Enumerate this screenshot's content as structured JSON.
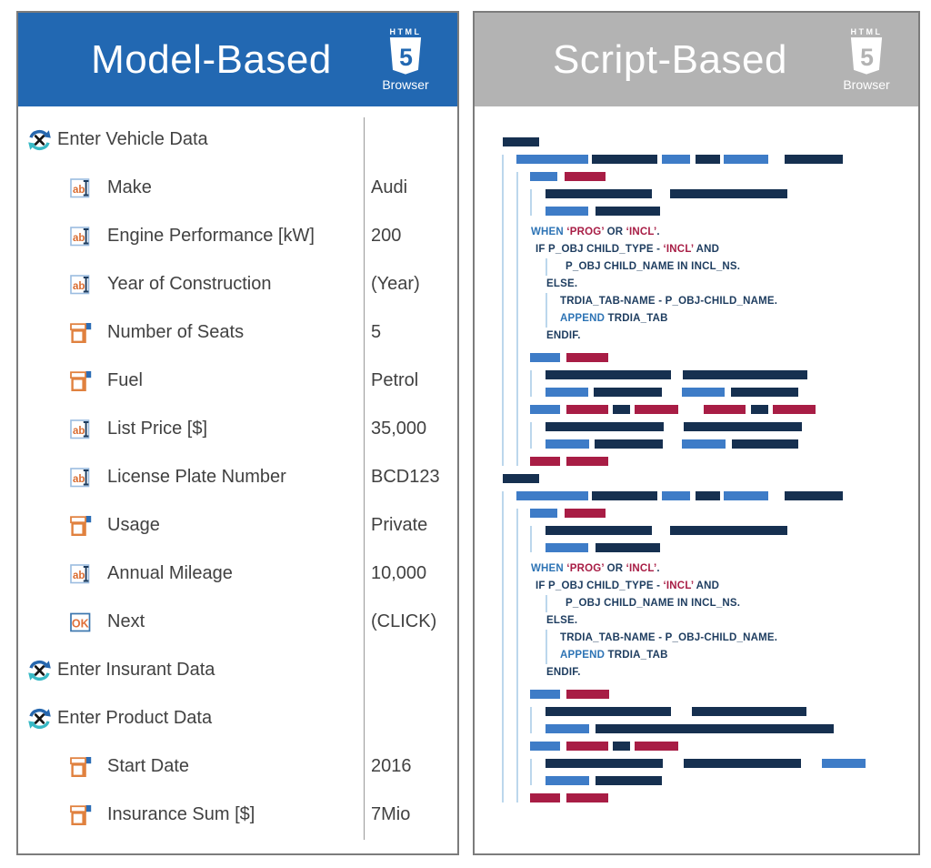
{
  "colors": {
    "header_blue": "#2268b2",
    "header_gray": "#b3b3b3",
    "bar_blue": "#3e7cc7",
    "bar_navy": "#163050",
    "bar_crimson": "#a81d45",
    "indent_line": "#bcd7ec",
    "code_text_navy": "#1d3c5f",
    "code_keyword_blue": "#2e74b5",
    "code_string_crimson": "#a81d45",
    "icon_orange": "#d96b2f",
    "sync_teal": "#38b9c6"
  },
  "model_panel": {
    "title": "Model-Based",
    "logo": {
      "top": "HTML",
      "five": "5",
      "caption": "Browser"
    },
    "icon_labels": {
      "text_input": "ab",
      "ok": "OK"
    },
    "rows": [
      {
        "icon": "sync",
        "label": "Enter Vehicle Data",
        "value": "",
        "level": 0
      },
      {
        "icon": "text",
        "label": "Make",
        "value": "Audi",
        "level": 1
      },
      {
        "icon": "text",
        "label": "Engine Performance [kW]",
        "value": "200",
        "level": 1
      },
      {
        "icon": "text",
        "label": "Year of Construction",
        "value": "(Year)",
        "level": 1
      },
      {
        "icon": "combo",
        "label": "Number of Seats",
        "value": "5",
        "level": 1
      },
      {
        "icon": "combo",
        "label": "Fuel",
        "value": "Petrol",
        "level": 1
      },
      {
        "icon": "text",
        "label": "List Price [$]",
        "value": "35,000",
        "level": 1
      },
      {
        "icon": "text",
        "label": "License Plate Number",
        "value": "BCD123",
        "level": 1
      },
      {
        "icon": "combo",
        "label": "Usage",
        "value": "Private",
        "level": 1
      },
      {
        "icon": "text",
        "label": "Annual Mileage",
        "value": "10,000",
        "level": 1
      },
      {
        "icon": "ok",
        "label": "Next",
        "value": "(CLICK)",
        "level": 1
      },
      {
        "icon": "sync",
        "label": "Enter Insurant Data",
        "value": "",
        "level": 0
      },
      {
        "icon": "sync",
        "label": "Enter Product Data",
        "value": "",
        "level": 0
      },
      {
        "icon": "combo",
        "label": "Start Date",
        "value": "2016",
        "level": 1
      },
      {
        "icon": "combo",
        "label": "Insurance Sum [$]",
        "value": "7Mio",
        "level": 1
      }
    ]
  },
  "script_panel": {
    "title": "Script-Based",
    "logo": {
      "top": "HTML",
      "five": "5",
      "caption": "Browser"
    },
    "code_lines": [
      {
        "ind": 0,
        "parts": [
          [
            "WHEN ",
            "kw"
          ],
          [
            "‘PROG’ ",
            "str"
          ],
          [
            " OR ",
            "plain"
          ],
          [
            "‘INCL’",
            "str"
          ],
          [
            ".",
            "plain"
          ]
        ]
      },
      {
        "ind": 1,
        "parts": [
          [
            "IF P_OBJ CHILD_TYPE - ",
            "plain"
          ],
          [
            "‘INCL’",
            "str"
          ],
          [
            " AND",
            "plain"
          ]
        ]
      },
      {
        "sub": true,
        "pad": 6,
        "parts": [
          [
            "P_OBJ CHILD_NAME IN INCL_NS.",
            "plain"
          ]
        ]
      },
      {
        "ind": 2,
        "parts": [
          [
            "ELSE.",
            "plain"
          ]
        ]
      },
      {
        "sub": true,
        "parts": [
          [
            "TRDIA_TAB-NAME - P_OBJ-CHILD_NAME.",
            "plain"
          ]
        ]
      },
      {
        "sub": true,
        "parts": [
          [
            "APPEND ",
            "kw"
          ],
          [
            "TRDIA_TAB",
            "plain"
          ]
        ]
      },
      {
        "ind": 2,
        "parts": [
          [
            "ENDIF.",
            "plain"
          ]
        ]
      }
    ],
    "blocks": [
      {
        "row1": [
          [
            "b",
            79,
            0
          ],
          [
            "d",
            72,
            4
          ],
          [
            "b",
            31,
            5
          ],
          [
            "d",
            27,
            6
          ],
          [
            "b",
            49,
            4
          ],
          [
            "d",
            64,
            18
          ]
        ],
        "top_rows": [
          {
            "lvl": 2,
            "bars": [
              [
                "b",
                30,
                0
              ],
              [
                "r",
                45,
                8
              ]
            ]
          },
          {
            "lvl": 3,
            "bars": [
              [
                "d",
                117,
                0
              ],
              [
                "d",
                129,
                20
              ]
            ]
          },
          {
            "lvl": 3,
            "bars": [
              [
                "b",
                47,
                0
              ],
              [
                "d",
                71,
                8
              ]
            ]
          }
        ],
        "bottom_rows": [
          {
            "lvl": 2,
            "bars": [
              [
                "b",
                33,
                0
              ],
              [
                "r",
                46,
                7
              ]
            ]
          },
          {
            "lvl": 3,
            "bars": [
              [
                "d",
                138,
                0
              ],
              [
                "d",
                137,
                13
              ]
            ]
          },
          {
            "lvl": 3,
            "bars": [
              [
                "b",
                47,
                0
              ],
              [
                "d",
                75,
                6
              ],
              [
                "b",
                47,
                22
              ],
              [
                "d",
                74,
                7
              ]
            ]
          },
          {
            "lvl": 2,
            "bars": [
              [
                "b",
                33,
                0
              ],
              [
                "r",
                46,
                7
              ],
              [
                "d",
                19,
                5
              ],
              [
                "r",
                48,
                5
              ],
              [
                "r",
                46,
                28
              ],
              [
                "d",
                19,
                6
              ],
              [
                "r",
                47,
                5
              ]
            ]
          },
          {
            "lvl": 3,
            "bars": [
              [
                "d",
                130,
                0
              ],
              [
                "d",
                130,
                22
              ]
            ]
          },
          {
            "lvl": 3,
            "bars": [
              [
                "b",
                48,
                0
              ],
              [
                "d",
                75,
                6
              ],
              [
                "b",
                48,
                21
              ],
              [
                "d",
                73,
                7
              ]
            ]
          },
          {
            "lvl": 2,
            "bars": [
              [
                "r",
                33,
                0
              ],
              [
                "r",
                46,
                7
              ]
            ]
          }
        ]
      },
      {
        "row1": [
          [
            "b",
            79,
            0
          ],
          [
            "d",
            72,
            4
          ],
          [
            "b",
            31,
            5
          ],
          [
            "d",
            27,
            6
          ],
          [
            "b",
            49,
            4
          ],
          [
            "d",
            64,
            18
          ]
        ],
        "top_rows": [
          {
            "lvl": 2,
            "bars": [
              [
                "b",
                30,
                0
              ],
              [
                "r",
                45,
                8
              ]
            ]
          },
          {
            "lvl": 3,
            "bars": [
              [
                "d",
                117,
                0
              ],
              [
                "d",
                129,
                20
              ]
            ]
          },
          {
            "lvl": 3,
            "bars": [
              [
                "b",
                47,
                0
              ],
              [
                "d",
                71,
                8
              ]
            ]
          }
        ],
        "bottom_rows": [
          {
            "lvl": 2,
            "bars": [
              [
                "b",
                33,
                0
              ],
              [
                "r",
                47,
                7
              ]
            ]
          },
          {
            "lvl": 3,
            "bars": [
              [
                "d",
                138,
                0
              ],
              [
                "d",
                126,
                23
              ]
            ]
          },
          {
            "lvl": 3,
            "bars": [
              [
                "b",
                48,
                0
              ],
              [
                "d",
                262,
                7
              ]
            ]
          },
          {
            "lvl": 2,
            "bars": [
              [
                "b",
                33,
                0
              ],
              [
                "r",
                46,
                7
              ],
              [
                "d",
                19,
                5
              ],
              [
                "r",
                48,
                5
              ]
            ]
          },
          {
            "lvl": 3,
            "bars": [
              [
                "d",
                129,
                0
              ],
              [
                "d",
                129,
                23
              ],
              [
                "b",
                48,
                23
              ]
            ]
          },
          {
            "lvl": 3,
            "bars": [
              [
                "b",
                48,
                0
              ],
              [
                "d",
                73,
                7
              ]
            ]
          },
          {
            "lvl": 2,
            "bars": [
              [
                "r",
                33,
                0
              ],
              [
                "r",
                46,
                7
              ]
            ]
          }
        ]
      }
    ]
  }
}
